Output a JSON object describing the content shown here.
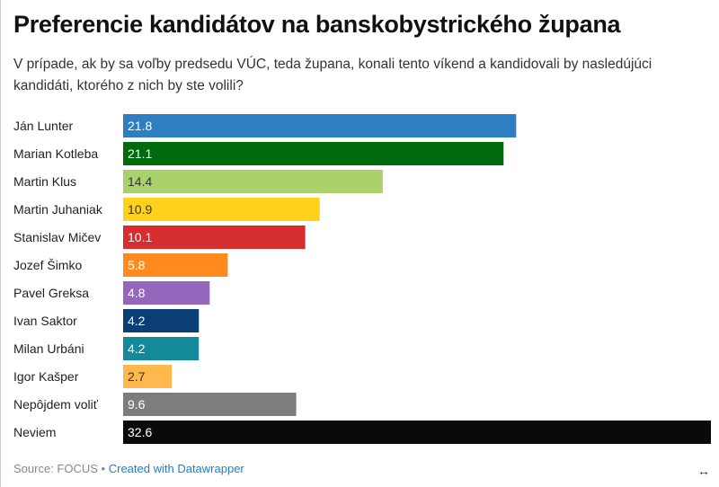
{
  "header": {
    "title": "Preferencie kandidátov na banskobystrického župana",
    "subtitle": "V prípade, ak by sa voľby predsedu VÚC, teda župana, konali tento víkend a kandidovali by nasledújúci kandidáti, ktorého z nich by ste volili?"
  },
  "chart_data": {
    "type": "bar",
    "orientation": "horizontal",
    "title": "Preferencie kandidátov na banskobystrického župana",
    "xlabel": "",
    "ylabel": "",
    "xlim": [
      0,
      32.6
    ],
    "categories": [
      "Ján Lunter",
      "Marian Kotleba",
      "Martin Klus",
      "Martin Juhaniak",
      "Stanislav Mičev",
      "Jozef Šimko",
      "Pavel Greksa",
      "Ivan Saktor",
      "Milan Urbáni",
      "Igor Kašper",
      "Nepôjdem voliť",
      "Neviem"
    ],
    "values": [
      21.8,
      21.1,
      14.4,
      10.9,
      10.1,
      5.8,
      4.8,
      4.2,
      4.2,
      2.7,
      9.6,
      32.6
    ],
    "labels": [
      "21.8",
      "21.1",
      "14.4",
      "10.9",
      "10.1",
      "5.8",
      "4.8",
      "4.2",
      "4.2",
      "2.7",
      "9.6",
      "32.6"
    ],
    "colors": [
      "#2d7fc1",
      "#006b0c",
      "#a9d26d",
      "#ffd11a",
      "#d62e2e",
      "#ff8b1f",
      "#9467bd",
      "#0b3e75",
      "#13899a",
      "#ffb84d",
      "#7d7d7d",
      "#0a0a0a"
    ],
    "label_colors": [
      "#fff",
      "#fff",
      "#333",
      "#333",
      "#fff",
      "#fff",
      "#fff",
      "#fff",
      "#fff",
      "#333",
      "#fff",
      "#fff"
    ]
  },
  "footer": {
    "source": "Source: FOCUS",
    "separator": "•",
    "credit": "Created with Datawrapper",
    "resize_icon": "↔"
  }
}
